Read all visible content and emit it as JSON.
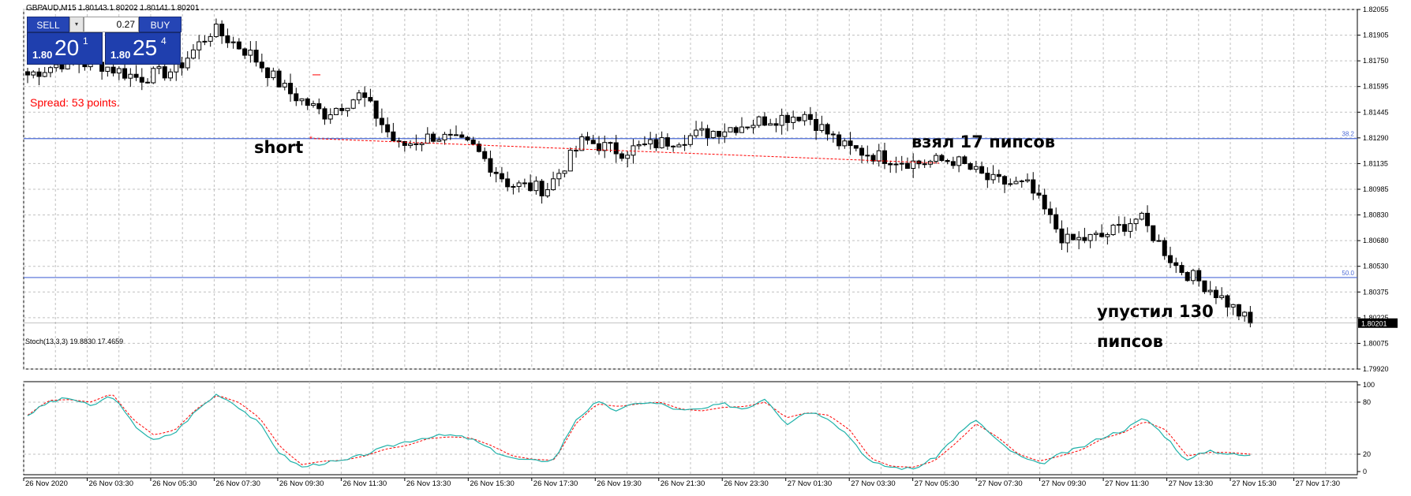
{
  "header": {
    "title": "GBPAUD,M15  1.80143 1.80202 1.80141 1.80201",
    "arrow_icon": "triangle-down-icon"
  },
  "trade_panel": {
    "sell_label": "SELL",
    "buy_label": "BUY",
    "lot": "0.27",
    "dropdown_icon": "dropdown-arrow-icon",
    "sell_price": {
      "small": "1.80",
      "big": "20",
      "sup": "1"
    },
    "buy_price": {
      "small": "1.80",
      "big": "25",
      "sup": "4"
    }
  },
  "annotations": {
    "spread": "Spread: 53 points.",
    "short": "short",
    "took": "взял 17 пипсов",
    "missed_1": "упустил 130",
    "missed_2": "пипсов"
  },
  "stoch_label": "Stoch(13,3,3) 19.8830 17.4659",
  "colors": {
    "bull": "#ffffff",
    "bear": "#000000",
    "fib_line": "#4d6bd6",
    "stoch_main": "#20b2aa",
    "stoch_signal": "#ff0000",
    "trade_line": "#ff0000",
    "sell_button": "#2545b5"
  },
  "chart_data": [
    {
      "type": "candlestick",
      "symbol": "GBPAUD",
      "timeframe": "M15",
      "ylim": [
        1.7992,
        1.8212
      ],
      "price_ticks": [
        "1.82055",
        "1.81905",
        "1.81750",
        "1.81595",
        "1.81445",
        "1.81290",
        "1.81135",
        "1.80985",
        "1.80830",
        "1.80680",
        "1.80530",
        "1.80375",
        "1.80225",
        "1.80075",
        "1.79920"
      ],
      "current_price": "1.80201",
      "levels": [
        {
          "label": "38.2",
          "value": 1.8133
        },
        {
          "label": "50.0",
          "value": 1.8048
        }
      ],
      "time_labels": [
        "26 Nov 2020",
        "26 Nov 03:30",
        "26 Nov 05:30",
        "26 Nov 07:30",
        "26 Nov 09:30",
        "26 Nov 11:30",
        "26 Nov 13:30",
        "26 Nov 15:30",
        "26 Nov 17:30",
        "26 Nov 19:30",
        "26 Nov 21:30",
        "26 Nov 23:30",
        "27 Nov 01:30",
        "27 Nov 03:30",
        "27 Nov 05:30",
        "27 Nov 07:30",
        "27 Nov 09:30",
        "27 Nov 11:30",
        "27 Nov 13:30",
        "27 Nov 15:30",
        "27 Nov 17:30"
      ],
      "keypoints": [
        [
          1.8172,
          1.8172
        ],
        [
          1.817,
          1.818
        ],
        [
          1.8183,
          1.8178
        ],
        [
          1.8167,
          1.817
        ],
        [
          1.8175,
          1.8175
        ],
        [
          1.8195,
          1.82
        ],
        [
          1.819,
          1.8185
        ],
        [
          1.817,
          1.8162
        ],
        [
          1.815,
          1.8148
        ],
        [
          1.8158,
          1.816
        ],
        [
          1.813,
          1.8128
        ],
        [
          1.8132,
          1.8135
        ],
        [
          1.813,
          1.8128
        ],
        [
          1.8112,
          1.8105
        ],
        [
          1.81,
          1.8102
        ],
        [
          1.813,
          1.8132
        ],
        [
          1.8128,
          1.8125
        ],
        [
          1.8134,
          1.813
        ],
        [
          1.813,
          1.8135
        ],
        [
          1.8142,
          1.814
        ],
        [
          1.814,
          1.8145
        ],
        [
          1.815,
          1.8148
        ],
        [
          1.813,
          1.8128
        ],
        [
          1.8124,
          1.8122
        ],
        [
          1.8116,
          1.8118
        ],
        [
          1.8122,
          1.812
        ],
        [
          1.8105,
          1.8107
        ],
        [
          1.8104,
          1.8104
        ],
        [
          1.8072,
          1.807
        ],
        [
          1.8075,
          1.8073
        ],
        [
          1.8086,
          1.8085
        ],
        [
          1.806,
          1.8055
        ],
        [
          1.8047,
          1.804
        ],
        [
          1.8022,
          1.802
        ]
      ],
      "series": [
        {
          "name": "GBPAUD M15",
          "note": "approx. 215 M15 candles, 26 Nov 2020 – 27 Nov 2020"
        }
      ]
    },
    {
      "type": "line",
      "title": "Stoch(13,3,3) 19.8830 17.4659",
      "ylim": [
        0,
        100
      ],
      "y_ticks": [
        100,
        80,
        20,
        0
      ],
      "keypoints": [
        [
          65,
          65
        ],
        [
          80,
          82
        ],
        [
          85,
          83
        ],
        [
          75,
          80
        ],
        [
          88,
          90
        ],
        [
          55,
          60
        ],
        [
          35,
          42
        ],
        [
          45,
          48
        ],
        [
          70,
          72
        ],
        [
          90,
          88
        ],
        [
          75,
          80
        ],
        [
          55,
          62
        ],
        [
          20,
          28
        ],
        [
          5,
          8
        ],
        [
          10,
          12
        ],
        [
          12,
          13
        ],
        [
          20,
          18
        ],
        [
          28,
          26
        ],
        [
          35,
          30
        ],
        [
          40,
          38
        ],
        [
          42,
          40
        ],
        [
          38,
          39
        ],
        [
          25,
          30
        ],
        [
          15,
          18
        ],
        [
          12,
          14
        ],
        [
          14,
          13
        ],
        [
          60,
          55
        ],
        [
          80,
          78
        ],
        [
          70,
          75
        ],
        [
          80,
          78
        ],
        [
          78,
          80
        ],
        [
          70,
          72
        ],
        [
          72,
          70
        ],
        [
          78,
          74
        ],
        [
          72,
          75
        ],
        [
          85,
          80
        ],
        [
          55,
          62
        ],
        [
          70,
          68
        ],
        [
          62,
          65
        ],
        [
          40,
          48
        ],
        [
          10,
          15
        ],
        [
          5,
          6
        ],
        [
          3,
          5
        ],
        [
          15,
          12
        ],
        [
          40,
          32
        ],
        [
          60,
          55
        ],
        [
          35,
          40
        ],
        [
          18,
          20
        ],
        [
          8,
          12
        ],
        [
          20,
          18
        ],
        [
          28,
          25
        ],
        [
          40,
          38
        ],
        [
          48,
          45
        ],
        [
          62,
          58
        ],
        [
          40,
          48
        ],
        [
          12,
          18
        ],
        [
          25,
          22
        ],
        [
          20,
          22
        ],
        [
          18,
          20
        ]
      ],
      "series": [
        {
          "name": "main"
        },
        {
          "name": "signal"
        }
      ],
      "last": [
        19.883,
        17.4659
      ]
    }
  ]
}
